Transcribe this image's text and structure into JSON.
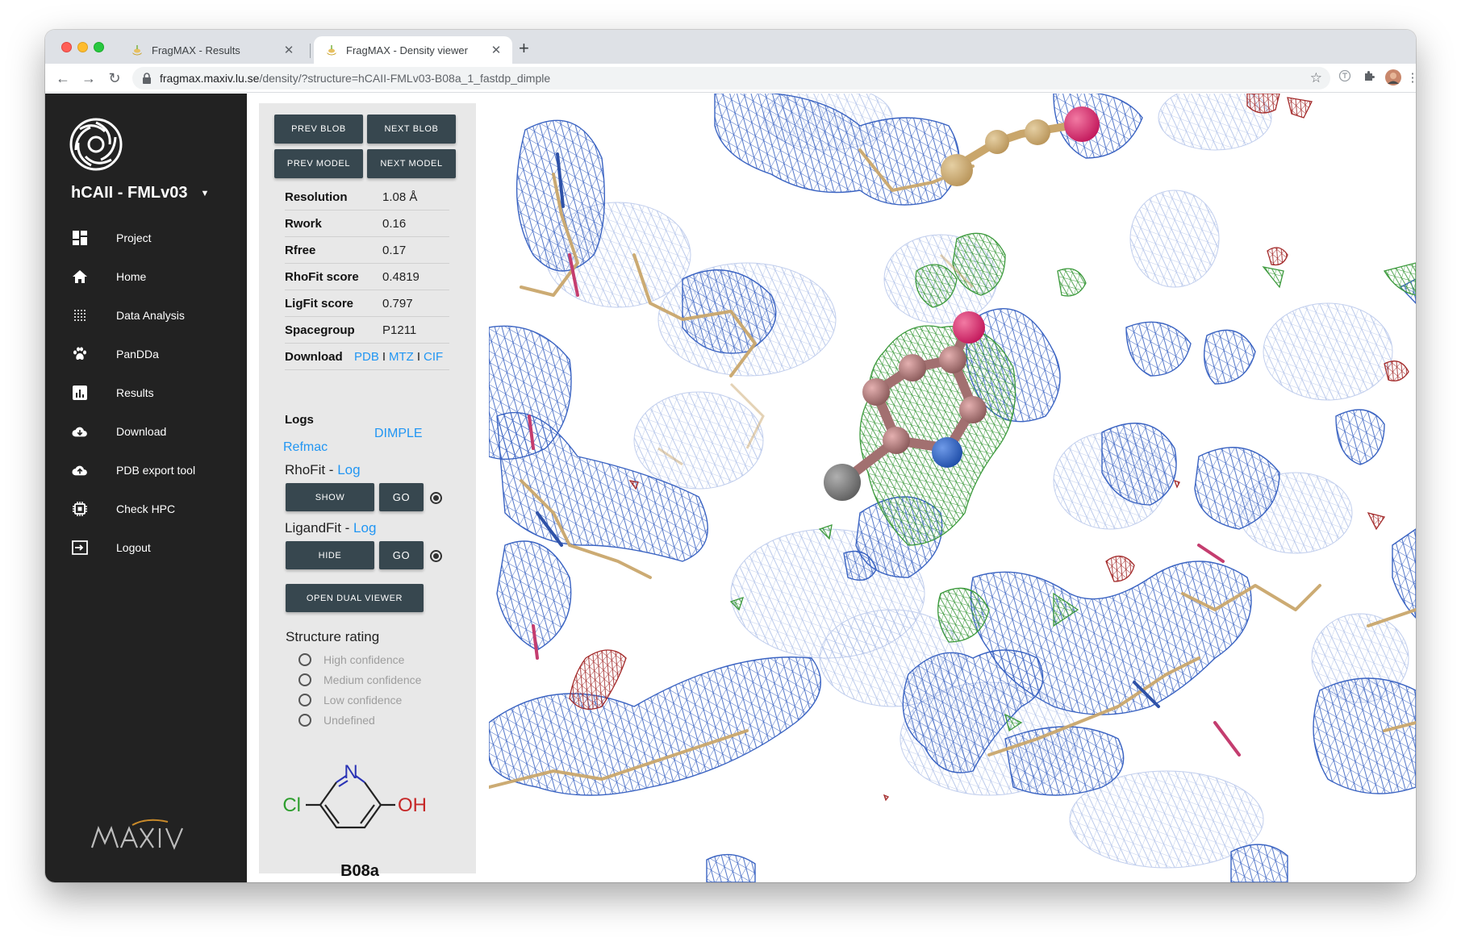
{
  "browser": {
    "tabs": [
      {
        "title": "FragMAX - Results",
        "active": false,
        "icon": "fragmax-favicon"
      },
      {
        "title": "FragMAX - Density viewer",
        "active": true,
        "icon": "fragmax-favicon"
      }
    ],
    "url_host": "fragmax.maxiv.lu.se",
    "url_path": "/density/?structure=hCAII-FMLv03-B08a_1_fastdp_dimple"
  },
  "sidebar": {
    "project_name": "hCAII - FMLv03",
    "items": [
      {
        "label": "Project",
        "icon": "dashboard-icon"
      },
      {
        "label": "Home",
        "icon": "home-icon"
      },
      {
        "label": "Data Analysis",
        "icon": "grid-dots-icon"
      },
      {
        "label": "PanDDa",
        "icon": "paw-icon"
      },
      {
        "label": "Results",
        "icon": "bar-chart-icon"
      },
      {
        "label": "Download",
        "icon": "cloud-download-icon"
      },
      {
        "label": "PDB export tool",
        "icon": "cloud-upload-icon"
      },
      {
        "label": "Check HPC",
        "icon": "chip-icon"
      },
      {
        "label": "Logout",
        "icon": "logout-icon"
      }
    ]
  },
  "panel": {
    "buttons": {
      "prev_blob": "PREV BLOB",
      "next_blob": "NEXT BLOB",
      "prev_model": "PREV MODEL",
      "next_model": "NEXT MODEL"
    },
    "stats": [
      {
        "key": "Resolution",
        "value": "1.08 Å"
      },
      {
        "key": "Rwork",
        "value": "0.16"
      },
      {
        "key": "Rfree",
        "value": "0.17"
      },
      {
        "key": "RhoFit score",
        "value": "0.4819"
      },
      {
        "key": "LigFit score",
        "value": "0.797"
      },
      {
        "key": "Spacegroup",
        "value": "P1211"
      }
    ],
    "download": {
      "label": "Download",
      "pdb": "PDB",
      "mtz": "MTZ",
      "cif": "CIF",
      "sep": "I"
    },
    "logs": {
      "title": "Logs",
      "refmac": "Refmac",
      "dimple": "DIMPLE"
    },
    "rhofit": {
      "label": "RhoFit - ",
      "log": "Log",
      "show": "SHOW",
      "go": "GO"
    },
    "ligandfit": {
      "label": "LigandFit - ",
      "log": "Log",
      "hide": "HIDE",
      "go": "GO"
    },
    "dual_viewer": "OPEN DUAL VIEWER",
    "rating": {
      "title": "Structure rating",
      "options": [
        "High confidence",
        "Medium confidence",
        "Low confidence",
        "Undefined"
      ]
    },
    "molecule": {
      "n": "N",
      "cl": "Cl",
      "oh": "OH"
    },
    "fragment_code": "B08a"
  },
  "colors": {
    "sidebar_bg": "#222222",
    "panel_bg": "#e8e8e8",
    "button_dark": "#37474f",
    "link_blue": "#2196f3",
    "mesh_blue": "#3a63c2",
    "mesh_green": "#3c9a3c",
    "mesh_red": "#a32a2a"
  }
}
